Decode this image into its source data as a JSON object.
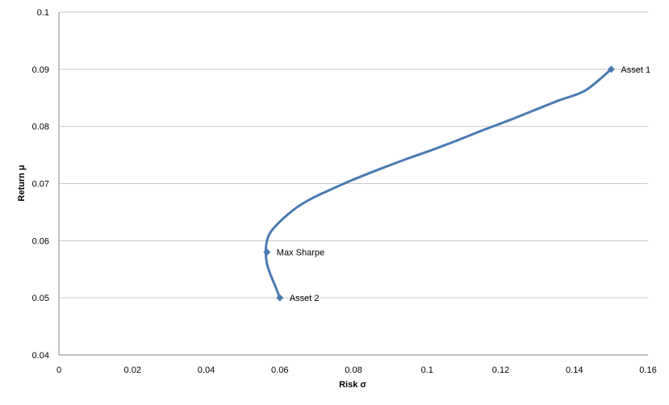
{
  "chart_data": {
    "type": "line",
    "title": "",
    "xlabel": "Risk σ",
    "ylabel": "Return μ",
    "xlim": [
      0,
      0.16
    ],
    "ylim": [
      0.04,
      0.1
    ],
    "x_ticks": [
      "0",
      "0.02",
      "0.04",
      "0.06",
      "0.08",
      "0.1",
      "0.12",
      "0.14",
      "0.16"
    ],
    "y_ticks": [
      "0.04",
      "0.05",
      "0.06",
      "0.07",
      "0.08",
      "0.09",
      "0.1"
    ],
    "x_tick_values": [
      0,
      0.02,
      0.04,
      0.06,
      0.08,
      0.1,
      0.12,
      0.14,
      0.16
    ],
    "y_tick_values": [
      0.04,
      0.05,
      0.06,
      0.07,
      0.08,
      0.09,
      0.1
    ],
    "grid": "horizontal",
    "series_color": "#4a7ab2",
    "grid_color": "#c8c8c8",
    "frontier": {
      "x": [
        0.06,
        0.0588,
        0.0575,
        0.0565,
        0.0562,
        0.0565,
        0.0575,
        0.0595,
        0.062,
        0.065,
        0.069,
        0.074,
        0.08,
        0.087,
        0.094,
        0.101,
        0.108,
        0.115,
        0.122,
        0.129,
        0.136,
        0.143,
        0.15
      ],
      "y": [
        0.05,
        0.052,
        0.054,
        0.056,
        0.058,
        0.06,
        0.0615,
        0.063,
        0.0645,
        0.066,
        0.0675,
        0.069,
        0.0707,
        0.0725,
        0.0742,
        0.0758,
        0.0775,
        0.0793,
        0.081,
        0.0828,
        0.0846,
        0.0863,
        0.09
      ]
    },
    "points": [
      {
        "label": "Asset 1",
        "x": 0.15,
        "y": 0.09
      },
      {
        "label": "Max Sharpe",
        "x": 0.0565,
        "y": 0.058
      },
      {
        "label": "Asset 2",
        "x": 0.06,
        "y": 0.05
      }
    ]
  }
}
